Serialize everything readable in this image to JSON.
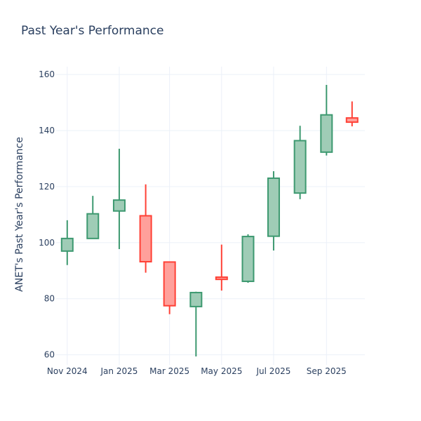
{
  "chart_data": {
    "type": "candlestick",
    "title": "Past Year's Performance",
    "xlabel": "",
    "ylabel": "ANET's Past Year's Performance",
    "xlim": [
      "2024-10-19",
      "2025-10-16"
    ],
    "ylim": [
      56.4,
      162.8
    ],
    "grid": true,
    "x_ticks": [
      {
        "date": "2024-11-01",
        "label": "Nov 2024"
      },
      {
        "date": "2025-01-01",
        "label": "Jan 2025"
      },
      {
        "date": "2025-03-01",
        "label": "Mar 2025"
      },
      {
        "date": "2025-05-01",
        "label": "May 2025"
      },
      {
        "date": "2025-07-01",
        "label": "Jul 2025"
      },
      {
        "date": "2025-09-01",
        "label": "Sep 2025"
      }
    ],
    "y_ticks": [
      60,
      80,
      100,
      120,
      140,
      160
    ],
    "colors": {
      "increasing": "#3d9970",
      "increasing_fill": "#9fccb6",
      "decreasing": "#ff4136",
      "decreasing_fill": "#ffa09b",
      "grid": "#ebf0f8",
      "text": "#2a3f5f"
    },
    "candles": [
      {
        "date": "2024-11-01",
        "open": 97.0,
        "high": 108.0,
        "low": 92.0,
        "close": 101.5
      },
      {
        "date": "2024-12-01",
        "open": 101.5,
        "high": 116.7,
        "low": 101.5,
        "close": 110.3
      },
      {
        "date": "2025-01-01",
        "open": 111.3,
        "high": 133.5,
        "low": 97.7,
        "close": 115.2
      },
      {
        "date": "2025-02-01",
        "open": 109.6,
        "high": 120.8,
        "low": 89.3,
        "close": 93.2
      },
      {
        "date": "2025-03-01",
        "open": 93.1,
        "high": 93.2,
        "low": 74.5,
        "close": 77.5
      },
      {
        "date": "2025-04-01",
        "open": 77.2,
        "high": 82.5,
        "low": 59.4,
        "close": 82.2
      },
      {
        "date": "2025-05-01",
        "open": 87.7,
        "high": 99.3,
        "low": 82.9,
        "close": 86.9
      },
      {
        "date": "2025-06-01",
        "open": 86.2,
        "high": 103.0,
        "low": 85.7,
        "close": 102.2
      },
      {
        "date": "2025-07-01",
        "open": 102.3,
        "high": 125.5,
        "low": 97.2,
        "close": 123.0
      },
      {
        "date": "2025-08-01",
        "open": 117.7,
        "high": 141.7,
        "low": 115.5,
        "close": 136.4
      },
      {
        "date": "2025-09-01",
        "open": 132.3,
        "high": 156.3,
        "low": 131.1,
        "close": 145.6
      },
      {
        "date": "2025-10-01",
        "open": 144.5,
        "high": 150.4,
        "low": 141.5,
        "close": 143.0
      }
    ]
  }
}
